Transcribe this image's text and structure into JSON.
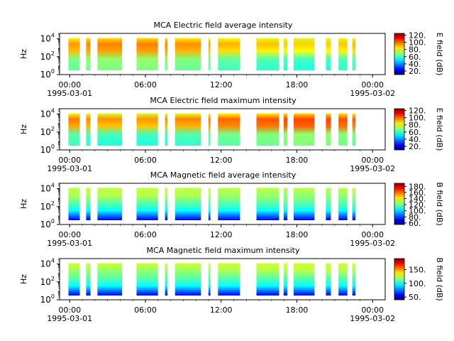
{
  "chart_data": [
    {
      "type": "heatmap",
      "title": "MCA  Electric field average intensity",
      "ylabel": "Hz",
      "colorbar_label": "E field (dB)",
      "colorbar_ticks": [
        "20.",
        "40.",
        "60.",
        "80.",
        "100.",
        "120."
      ],
      "colorbar_range": [
        10,
        125
      ],
      "y_scale": "log",
      "y_ticks": [
        {
          "value": 1,
          "base": "10",
          "exp": "0"
        },
        {
          "value": 100,
          "base": "10",
          "exp": "2"
        },
        {
          "value": 10000,
          "base": "10",
          "exp": "4"
        }
      ],
      "ylim": [
        1,
        40000
      ],
      "x_ticks": [
        "00:00",
        "06:00",
        "12:00",
        "18:00",
        "00:00"
      ],
      "x_tick_hours": [
        0,
        6,
        12,
        18,
        24
      ],
      "date_labels": {
        "start": "1995-03-01",
        "end": "1995-03-02"
      },
      "xlim_hours": [
        -0.8,
        25
      ],
      "style": "electric",
      "level": "average"
    },
    {
      "type": "heatmap",
      "title": "MCA  Electric field maximum intensity",
      "ylabel": "Hz",
      "colorbar_label": "E field (dB)",
      "colorbar_ticks": [
        "20.",
        "40.",
        "60.",
        "80.",
        "100.",
        "120."
      ],
      "colorbar_range": [
        10,
        125
      ],
      "y_scale": "log",
      "y_ticks": [
        {
          "value": 1,
          "base": "10",
          "exp": "0"
        },
        {
          "value": 100,
          "base": "10",
          "exp": "2"
        },
        {
          "value": 10000,
          "base": "10",
          "exp": "4"
        }
      ],
      "ylim": [
        1,
        40000
      ],
      "x_ticks": [
        "00:00",
        "06:00",
        "12:00",
        "18:00",
        "00:00"
      ],
      "x_tick_hours": [
        0,
        6,
        12,
        18,
        24
      ],
      "date_labels": {
        "start": "1995-03-01",
        "end": "1995-03-02"
      },
      "xlim_hours": [
        -0.8,
        25
      ],
      "style": "electric",
      "level": "maximum"
    },
    {
      "type": "heatmap",
      "title": "MCA  Magnetic field average intensity",
      "ylabel": "Hz",
      "colorbar_label": "B field (dB)",
      "colorbar_ticks": [
        "60.",
        "80.",
        "100.",
        "120.",
        "140.",
        "160.",
        "180."
      ],
      "colorbar_range": [
        55,
        190
      ],
      "y_scale": "log",
      "y_ticks": [
        {
          "value": 1,
          "base": "10",
          "exp": "0"
        },
        {
          "value": 100,
          "base": "10",
          "exp": "2"
        },
        {
          "value": 10000,
          "base": "10",
          "exp": "4"
        }
      ],
      "ylim": [
        1,
        40000
      ],
      "x_ticks": [
        "00:00",
        "06:00",
        "12:00",
        "18:00",
        "00:00"
      ],
      "x_tick_hours": [
        0,
        6,
        12,
        18,
        24
      ],
      "date_labels": {
        "start": "1995-03-01",
        "end": "1995-03-02"
      },
      "xlim_hours": [
        -0.8,
        25
      ],
      "style": "magnetic",
      "level": "average"
    },
    {
      "type": "heatmap",
      "title": "MCA  Magnetic field maximum intensity",
      "ylabel": "Hz",
      "colorbar_label": "B field (dB)",
      "colorbar_ticks": [
        "50.",
        "100.",
        "150."
      ],
      "colorbar_range": [
        40,
        190
      ],
      "y_scale": "log",
      "y_ticks": [
        {
          "value": 1,
          "base": "10",
          "exp": "0"
        },
        {
          "value": 100,
          "base": "10",
          "exp": "2"
        },
        {
          "value": 10000,
          "base": "10",
          "exp": "4"
        }
      ],
      "ylim": [
        1,
        40000
      ],
      "x_ticks": [
        "00:00",
        "06:00",
        "12:00",
        "18:00",
        "00:00"
      ],
      "x_tick_hours": [
        0,
        6,
        12,
        18,
        24
      ],
      "date_labels": {
        "start": "1995-03-01",
        "end": "1995-03-02"
      },
      "xlim_hours": [
        -0.8,
        25
      ],
      "style": "magnetic",
      "level": "maximum"
    }
  ],
  "data_segments_hours": [
    [
      -0.1,
      0.8
    ],
    [
      1.3,
      1.65
    ],
    [
      2.2,
      4.15
    ],
    [
      5.3,
      7.0
    ],
    [
      7.55,
      7.75
    ],
    [
      8.35,
      10.4
    ],
    [
      11.0,
      11.15
    ],
    [
      11.75,
      13.5
    ],
    [
      14.8,
      16.6
    ],
    [
      16.95,
      17.25
    ],
    [
      17.75,
      19.4
    ],
    [
      20.3,
      20.7
    ],
    [
      21.3,
      22.0
    ],
    [
      22.4,
      22.65
    ]
  ],
  "colors": {
    "background": "#ffffff",
    "axis": "#000000"
  }
}
